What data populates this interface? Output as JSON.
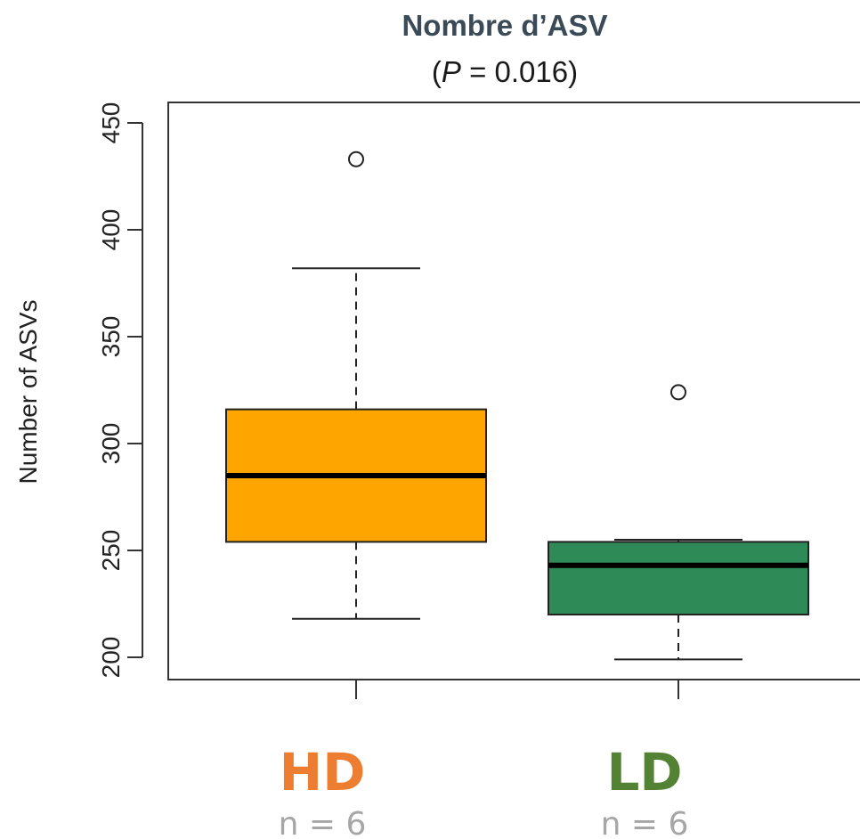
{
  "chart_data": {
    "type": "box",
    "title": "Nombre d’ASV",
    "subtitle": {
      "prefix": "(",
      "italic": "P",
      "suffix": " = 0.016)"
    },
    "ylabel": "Number of ASVs",
    "ylim": [
      190,
      460
    ],
    "yticks": [
      200,
      250,
      300,
      350,
      400,
      450
    ],
    "grid": false,
    "groups": [
      {
        "name": "HD",
        "n_label": "n = 6",
        "color": "#ffa500",
        "label_color": "#ed7d31",
        "whisker_low": 218,
        "q1": 254,
        "median": 285,
        "q3": 316,
        "whisker_high": 382,
        "outliers": [
          433
        ]
      },
      {
        "name": "LD",
        "n_label": "n = 6",
        "color": "#2e8b57",
        "label_color": "#548235",
        "whisker_low": 199,
        "q1": 220,
        "median": 243,
        "q3": 254,
        "whisker_high": 255,
        "outliers": [
          324
        ]
      }
    ]
  }
}
